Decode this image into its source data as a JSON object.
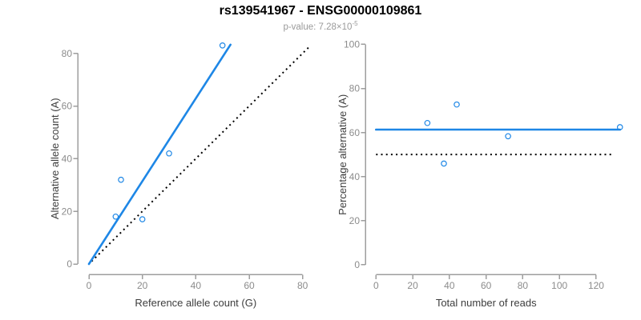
{
  "header": {
    "title": "rs139541967 - ENSG00000109861",
    "subtitle_prefix": "p-value: ",
    "subtitle_mantissa": "7.28×10",
    "subtitle_exponent": "-5"
  },
  "colors": {
    "accent_blue": "#1E87E6",
    "reference_black": "#000000",
    "axis_gray": "#9e9e9e",
    "tick_label_gray": "#8c8c8c",
    "axis_title_dark": "#3d3d3d",
    "subtitle_gray": "#9a9a9a",
    "title_black": "#000000"
  },
  "chart_data": [
    {
      "type": "scatter",
      "xlabel": "Reference allele count (G)",
      "ylabel": "Alternative allele count (A)",
      "xlim": [
        0,
        80
      ],
      "ylim": [
        0,
        80
      ],
      "xticks": [
        0,
        20,
        40,
        60,
        80
      ],
      "yticks": [
        0,
        20,
        40,
        60,
        80
      ],
      "grid": false,
      "points": [
        [
          10,
          18
        ],
        [
          12,
          32
        ],
        [
          20,
          17
        ],
        [
          30,
          42
        ],
        [
          50,
          83
        ]
      ],
      "fit_line": {
        "style": "solid",
        "x1": 0,
        "y1": 0,
        "x2": 53,
        "y2": 83.3,
        "meaning": "regression fit"
      },
      "reference_line": {
        "style": "dotted",
        "x1": 1,
        "y1": 1,
        "x2": 83,
        "y2": 83,
        "meaning": "identity y=x"
      }
    },
    {
      "type": "scatter",
      "xlabel": "Total number of reads",
      "ylabel": "Percentage alternative (A)",
      "xlim": [
        0,
        133
      ],
      "ylim": [
        0,
        100
      ],
      "xticks": [
        0,
        20,
        40,
        60,
        80,
        100,
        120
      ],
      "yticks": [
        0,
        20,
        40,
        60,
        80,
        100
      ],
      "grid": false,
      "points": [
        [
          28,
          64.3
        ],
        [
          44,
          72.7
        ],
        [
          37,
          45.9
        ],
        [
          72,
          58.3
        ],
        [
          133,
          62.4
        ]
      ],
      "fit_line": {
        "style": "solid",
        "x1": 0,
        "y1": 61.3,
        "x2": 133,
        "y2": 61.3,
        "meaning": "mean percentage fit"
      },
      "reference_line": {
        "style": "dotted",
        "x1": 0,
        "y1": 50,
        "x2": 130,
        "y2": 50,
        "meaning": "50% reference"
      }
    }
  ]
}
